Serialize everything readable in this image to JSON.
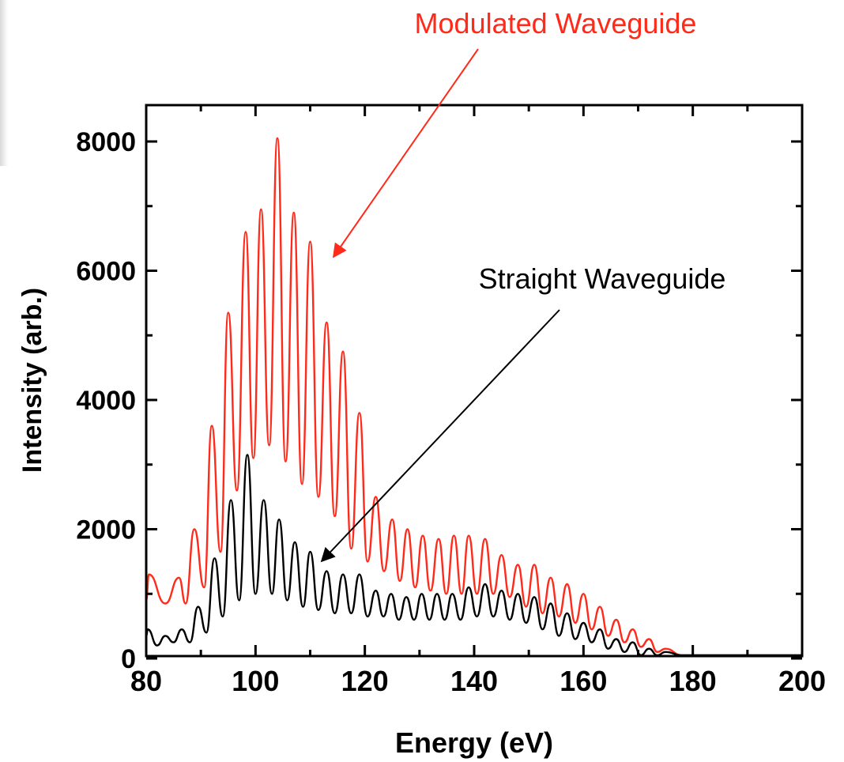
{
  "chart_data": {
    "type": "line",
    "title": "",
    "xlabel": "Energy (eV)",
    "ylabel": "Intensity (arb.)",
    "xlim": [
      80,
      200
    ],
    "ylim": [
      -200,
      8300
    ],
    "x_ticks": [
      80,
      100,
      120,
      140,
      160,
      180,
      200
    ],
    "y_ticks": [
      0,
      2000,
      4000,
      6000,
      8000
    ],
    "grid": false,
    "legend": "none",
    "series": [
      {
        "name": "Modulated Waveguide",
        "color": "#ff2a1a",
        "peaks": [
          [
            80.5,
            1300
          ],
          [
            86.0,
            1250
          ],
          [
            88.8,
            2000
          ],
          [
            92.0,
            3600
          ],
          [
            95.0,
            5350
          ],
          [
            98.2,
            6600
          ],
          [
            101.0,
            6950
          ],
          [
            104.0,
            8050
          ],
          [
            107.0,
            6900
          ],
          [
            110.0,
            6450
          ],
          [
            113.0,
            5200
          ],
          [
            116.0,
            4750
          ],
          [
            119.0,
            3800
          ],
          [
            122.0,
            2500
          ],
          [
            125.0,
            2150
          ],
          [
            127.8,
            2000
          ],
          [
            130.6,
            1900
          ],
          [
            133.5,
            1850
          ],
          [
            136.3,
            1900
          ],
          [
            139.0,
            1900
          ],
          [
            142.0,
            1850
          ],
          [
            145.0,
            1600
          ],
          [
            148.0,
            1450
          ],
          [
            151.0,
            1450
          ],
          [
            154.0,
            1250
          ],
          [
            157.0,
            1150
          ],
          [
            160.0,
            1000
          ],
          [
            163.0,
            800
          ],
          [
            166.0,
            600
          ],
          [
            169.0,
            450
          ],
          [
            172.0,
            300
          ],
          [
            175.0,
            150
          ]
        ],
        "troughs": [
          [
            80,
            900
          ],
          [
            83.5,
            850
          ],
          [
            87.2,
            850
          ],
          [
            90.6,
            1100
          ],
          [
            93.6,
            1650
          ],
          [
            96.6,
            2600
          ],
          [
            99.6,
            3100
          ],
          [
            102.5,
            3300
          ],
          [
            105.5,
            3050
          ],
          [
            108.5,
            2700
          ],
          [
            111.5,
            2500
          ],
          [
            114.5,
            2200
          ],
          [
            117.5,
            1700
          ],
          [
            120.5,
            1500
          ],
          [
            123.5,
            1350
          ],
          [
            126.4,
            1200
          ],
          [
            129.2,
            1100
          ],
          [
            132.0,
            1050
          ],
          [
            134.9,
            1000
          ],
          [
            137.7,
            1000
          ],
          [
            140.5,
            1000
          ],
          [
            143.5,
            1000
          ],
          [
            146.5,
            950
          ],
          [
            149.5,
            800
          ],
          [
            152.5,
            700
          ],
          [
            155.5,
            650
          ],
          [
            158.5,
            550
          ],
          [
            161.5,
            450
          ],
          [
            164.5,
            350
          ],
          [
            167.5,
            250
          ],
          [
            170.5,
            180
          ],
          [
            173.5,
            100
          ],
          [
            178,
            30
          ],
          [
            183,
            10
          ],
          [
            200,
            0
          ]
        ]
      },
      {
        "name": "Straight Waveguide",
        "color": "#000000",
        "peaks": [
          [
            80.3,
            450
          ],
          [
            83.5,
            350
          ],
          [
            86.5,
            450
          ],
          [
            89.5,
            800
          ],
          [
            92.5,
            1550
          ],
          [
            95.5,
            2450
          ],
          [
            98.5,
            3150
          ],
          [
            101.5,
            2450
          ],
          [
            104.3,
            2150
          ],
          [
            107.2,
            1800
          ],
          [
            110.0,
            1650
          ],
          [
            113.0,
            1350
          ],
          [
            116.0,
            1300
          ],
          [
            119.0,
            1300
          ],
          [
            122.0,
            1050
          ],
          [
            124.8,
            1000
          ],
          [
            127.6,
            950
          ],
          [
            130.4,
            1000
          ],
          [
            133.2,
            1000
          ],
          [
            136.0,
            1000
          ],
          [
            139.0,
            1100
          ],
          [
            142.0,
            1150
          ],
          [
            145.0,
            1050
          ],
          [
            148.0,
            1000
          ],
          [
            151.0,
            950
          ],
          [
            154.0,
            850
          ],
          [
            157.0,
            700
          ],
          [
            160.0,
            550
          ],
          [
            163.0,
            450
          ],
          [
            166.0,
            300
          ],
          [
            169.0,
            250
          ],
          [
            172.0,
            150
          ],
          [
            175.0,
            100
          ]
        ],
        "troughs": [
          [
            80,
            350
          ],
          [
            82.0,
            200
          ],
          [
            85.0,
            250
          ],
          [
            88.0,
            250
          ],
          [
            91.0,
            400
          ],
          [
            94.0,
            650
          ],
          [
            97.0,
            900
          ],
          [
            100.0,
            1000
          ],
          [
            103.0,
            1000
          ],
          [
            105.8,
            900
          ],
          [
            108.7,
            800
          ],
          [
            111.5,
            750
          ],
          [
            114.5,
            700
          ],
          [
            117.5,
            700
          ],
          [
            120.5,
            650
          ],
          [
            123.4,
            650
          ],
          [
            126.2,
            600
          ],
          [
            129.0,
            600
          ],
          [
            131.8,
            600
          ],
          [
            134.6,
            600
          ],
          [
            137.5,
            600
          ],
          [
            140.5,
            650
          ],
          [
            143.5,
            650
          ],
          [
            146.5,
            600
          ],
          [
            149.5,
            550
          ],
          [
            152.5,
            450
          ],
          [
            155.5,
            350
          ],
          [
            158.5,
            300
          ],
          [
            161.5,
            250
          ],
          [
            164.5,
            150
          ],
          [
            167.5,
            100
          ],
          [
            170.5,
            50
          ],
          [
            173.5,
            30
          ],
          [
            178,
            15
          ],
          [
            200,
            0
          ]
        ]
      }
    ],
    "annotations": [
      {
        "text": "Modulated Waveguide",
        "color": "#ff2a1a",
        "series": 0
      },
      {
        "text": "Straight Waveguide",
        "color": "#000000",
        "series": 1
      }
    ]
  }
}
